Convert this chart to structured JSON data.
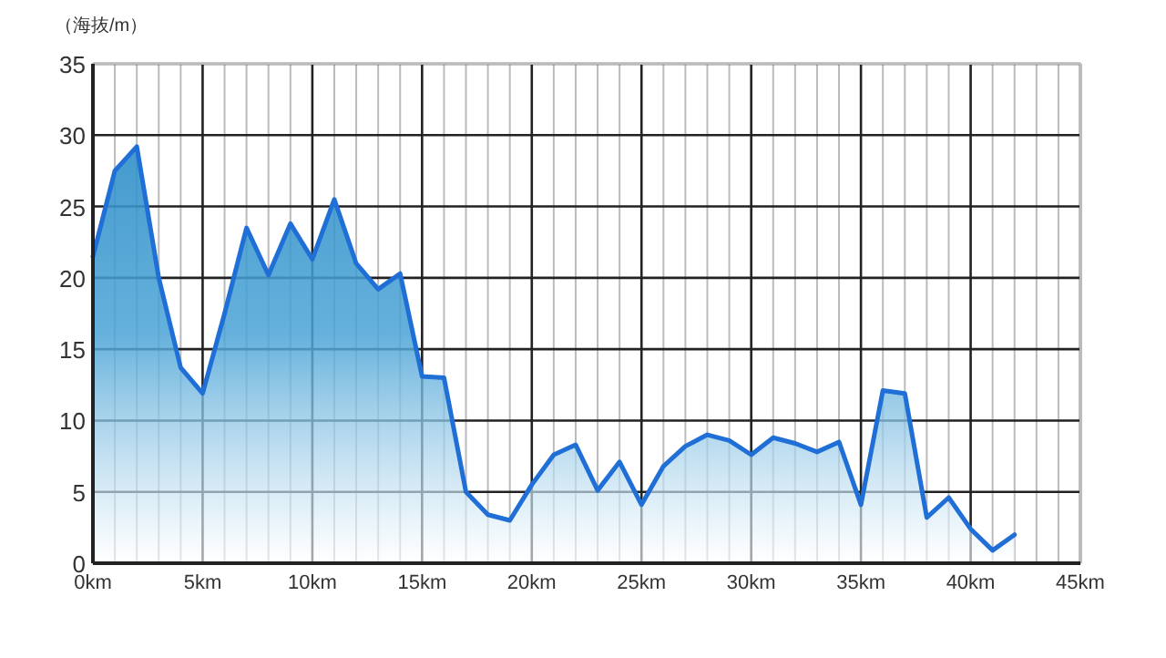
{
  "chart_data": {
    "type": "area",
    "ylabel": "（海抜/m）",
    "x": [
      0,
      1,
      2,
      3,
      4,
      5,
      6,
      7,
      8,
      9,
      10,
      11,
      12,
      13,
      14,
      15,
      16,
      17,
      18,
      19,
      20,
      21,
      22,
      23,
      24,
      25,
      26,
      27,
      28,
      29,
      30,
      31,
      32,
      33,
      34,
      35,
      36,
      37,
      38,
      39,
      40,
      41,
      42
    ],
    "series": [
      {
        "color": "#1f6fd6",
        "values": [
          21.5,
          27.5,
          29.2,
          20,
          13.7,
          11.9,
          17.5,
          23.5,
          20.2,
          23.8,
          21.3,
          25.5,
          21,
          19.2,
          20.3,
          13.1,
          13,
          5,
          3.4,
          3,
          5.5,
          7.6,
          8.3,
          5.1,
          7.1,
          4.1,
          6.8,
          8.2,
          9,
          8.6,
          7.6,
          8.8,
          8.4,
          7.8,
          8.5,
          4.1,
          12.1,
          11.9,
          3.2,
          4.6,
          2.4,
          0.9,
          2
        ]
      }
    ],
    "xlim": [
      0,
      45
    ],
    "ylim": [
      0,
      35
    ],
    "xticks": [
      {
        "value": 0,
        "label": "0km"
      },
      {
        "value": 1,
        "label": null
      },
      {
        "value": 2,
        "label": null
      },
      {
        "value": 3,
        "label": null
      },
      {
        "value": 4,
        "label": null
      },
      {
        "value": 5,
        "label": "5km"
      },
      {
        "value": 6,
        "label": null
      },
      {
        "value": 7,
        "label": null
      },
      {
        "value": 8,
        "label": null
      },
      {
        "value": 9,
        "label": null
      },
      {
        "value": 10,
        "label": "10km"
      },
      {
        "value": 11,
        "label": null
      },
      {
        "value": 12,
        "label": null
      },
      {
        "value": 13,
        "label": null
      },
      {
        "value": 14,
        "label": null
      },
      {
        "value": 15,
        "label": "15km"
      },
      {
        "value": 16,
        "label": null
      },
      {
        "value": 17,
        "label": null
      },
      {
        "value": 18,
        "label": null
      },
      {
        "value": 19,
        "label": null
      },
      {
        "value": 20,
        "label": "20km"
      },
      {
        "value": 21,
        "label": null
      },
      {
        "value": 22,
        "label": null
      },
      {
        "value": 23,
        "label": null
      },
      {
        "value": 24,
        "label": null
      },
      {
        "value": 25,
        "label": "25km"
      },
      {
        "value": 26,
        "label": null
      },
      {
        "value": 27,
        "label": null
      },
      {
        "value": 28,
        "label": null
      },
      {
        "value": 29,
        "label": null
      },
      {
        "value": 30,
        "label": "30km"
      },
      {
        "value": 31,
        "label": null
      },
      {
        "value": 32,
        "label": null
      },
      {
        "value": 33,
        "label": null
      },
      {
        "value": 34,
        "label": null
      },
      {
        "value": 35,
        "label": "35km"
      },
      {
        "value": 36,
        "label": null
      },
      {
        "value": 37,
        "label": null
      },
      {
        "value": 38,
        "label": null
      },
      {
        "value": 39,
        "label": null
      },
      {
        "value": 40,
        "label": "40km"
      },
      {
        "value": 41,
        "label": null
      },
      {
        "value": 42,
        "label": null
      },
      {
        "value": 43,
        "label": null
      },
      {
        "value": 44,
        "label": null
      },
      {
        "value": 45,
        "label": "45km"
      }
    ],
    "yticks": [
      0,
      5,
      10,
      15,
      20,
      25,
      30,
      35
    ],
    "grid": true,
    "line_style": "solid",
    "marker": "none"
  }
}
